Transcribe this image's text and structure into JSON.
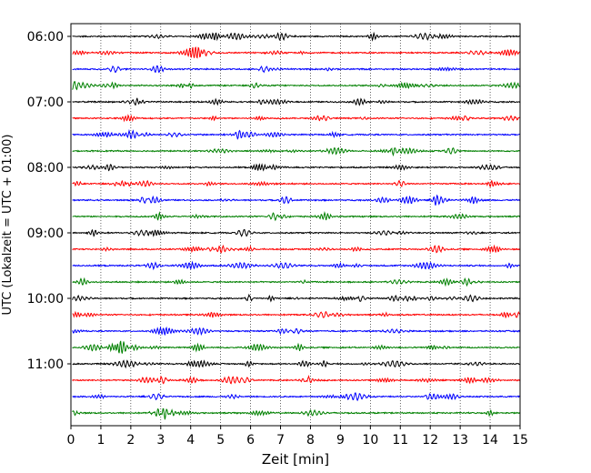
{
  "chart_data": {
    "type": "line",
    "title": "",
    "xlabel": "Zeit  [min]",
    "ylabel": "UTC (Lokalzeit = UTC + 01:00)",
    "xlim": [
      0,
      15
    ],
    "x_ticks": [
      0,
      1,
      2,
      3,
      4,
      5,
      6,
      7,
      8,
      9,
      10,
      11,
      12,
      13,
      14,
      15
    ],
    "x_tick_labels": [
      "0",
      "1",
      "2",
      "3",
      "4",
      "5",
      "6",
      "7",
      "8",
      "9",
      "10",
      "11",
      "12",
      "13",
      "14",
      "15"
    ],
    "y_tick_labels": [
      "06:00",
      "07:00",
      "08:00",
      "09:00",
      "10:00",
      "11:00"
    ],
    "grid": "vertical dotted",
    "trace_colors": [
      "#000000",
      "#ff0000",
      "#0000ff",
      "#008000"
    ],
    "traces": [
      {
        "start": "06:00",
        "color": "#000000"
      },
      {
        "start": "06:15",
        "color": "#ff0000"
      },
      {
        "start": "06:30",
        "color": "#0000ff"
      },
      {
        "start": "06:45",
        "color": "#008000"
      },
      {
        "start": "07:00",
        "color": "#000000"
      },
      {
        "start": "07:15",
        "color": "#ff0000"
      },
      {
        "start": "07:30",
        "color": "#0000ff"
      },
      {
        "start": "07:45",
        "color": "#008000"
      },
      {
        "start": "08:00",
        "color": "#000000"
      },
      {
        "start": "08:15",
        "color": "#ff0000"
      },
      {
        "start": "08:30",
        "color": "#0000ff"
      },
      {
        "start": "08:45",
        "color": "#008000"
      },
      {
        "start": "09:00",
        "color": "#000000"
      },
      {
        "start": "09:15",
        "color": "#ff0000"
      },
      {
        "start": "09:30",
        "color": "#0000ff"
      },
      {
        "start": "09:45",
        "color": "#008000"
      },
      {
        "start": "10:00",
        "color": "#000000"
      },
      {
        "start": "10:15",
        "color": "#ff0000"
      },
      {
        "start": "10:30",
        "color": "#0000ff"
      },
      {
        "start": "10:45",
        "color": "#008000"
      },
      {
        "start": "11:00",
        "color": "#000000"
      },
      {
        "start": "11:15",
        "color": "#ff0000"
      },
      {
        "start": "11:30",
        "color": "#0000ff"
      },
      {
        "start": "11:45",
        "color": "#008000"
      }
    ]
  }
}
